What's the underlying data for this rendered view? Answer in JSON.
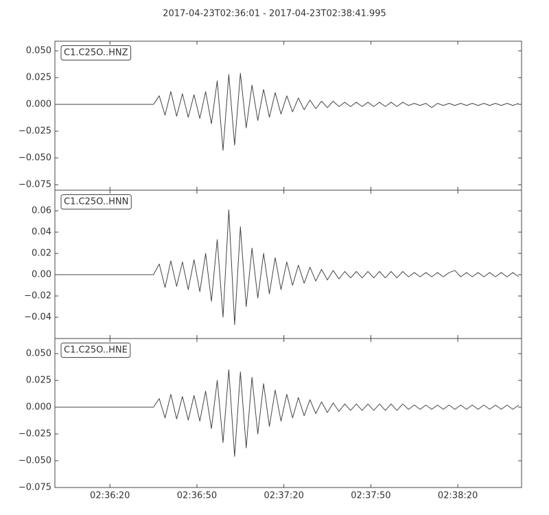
{
  "title": "2017-04-23T02:36:01  -  2017-04-23T02:38:41.995",
  "chart_data": [
    {
      "type": "line",
      "xlim": [
        "02:36:01",
        "02:38:41.995"
      ],
      "ylim": [
        -0.0801,
        0.059
      ],
      "yticks": [
        {
          "value": 0.05,
          "label": "0.050"
        },
        {
          "value": 0.025,
          "label": "0.025"
        },
        {
          "value": 0,
          "label": "0.000"
        },
        {
          "value": -0.025,
          "label": "−0.025"
        },
        {
          "value": -0.05,
          "label": "−0.050"
        },
        {
          "value": -0.075,
          "label": "−0.075"
        }
      ],
      "x": [
        "02:36:01",
        "02:36:03",
        "02:36:05",
        "02:36:07",
        "02:36:09",
        "02:36:11",
        "02:36:13",
        "02:36:15",
        "02:36:17",
        "02:36:19",
        "02:36:21",
        "02:36:23",
        "02:36:25",
        "02:36:27",
        "02:36:29",
        "02:36:31",
        "02:36:33",
        "02:36:35",
        "02:36:37",
        "02:36:39",
        "02:36:41",
        "02:36:43",
        "02:36:45",
        "02:36:47",
        "02:36:49",
        "02:36:51",
        "02:36:53",
        "02:36:55",
        "02:36:57",
        "02:36:59",
        "02:37:01",
        "02:37:03",
        "02:37:05",
        "02:37:07",
        "02:37:09",
        "02:37:11",
        "02:37:13",
        "02:37:15",
        "02:37:17",
        "02:37:19",
        "02:37:21",
        "02:37:23",
        "02:37:25",
        "02:37:27",
        "02:37:29",
        "02:37:31",
        "02:37:33",
        "02:37:35",
        "02:37:37",
        "02:37:39",
        "02:37:41",
        "02:37:43",
        "02:37:45",
        "02:37:47",
        "02:37:49",
        "02:37:51",
        "02:37:53",
        "02:37:55",
        "02:37:57",
        "02:37:59",
        "02:38:01",
        "02:38:03",
        "02:38:05",
        "02:38:07",
        "02:38:09",
        "02:38:11",
        "02:38:13",
        "02:38:15",
        "02:38:17",
        "02:38:19",
        "02:38:21",
        "02:38:23",
        "02:38:25",
        "02:38:27",
        "02:38:29",
        "02:38:31",
        "02:38:33",
        "02:38:35",
        "02:38:37",
        "02:38:39",
        "02:38:41"
      ],
      "series": [
        {
          "name": "C1.C25O..HNZ",
          "color": "#444444",
          "values": [
            0,
            0,
            0,
            0,
            0,
            0,
            0,
            0,
            0,
            0,
            0,
            0,
            0,
            0,
            0,
            0,
            0,
            0,
            0.008,
            -0.01,
            0.012,
            -0.011,
            0.01,
            -0.012,
            0.009,
            -0.013,
            0.012,
            -0.018,
            0.022,
            -0.043,
            0.028,
            -0.038,
            0.029,
            -0.022,
            0.018,
            -0.015,
            0.014,
            -0.012,
            0.011,
            -0.009,
            0.008,
            -0.007,
            0.006,
            -0.005,
            0.004,
            -0.004,
            0.003,
            -0.003,
            0.003,
            -0.002,
            0.002,
            -0.002,
            0.002,
            -0.002,
            0.002,
            -0.002,
            0.002,
            -0.002,
            0.002,
            -0.002,
            0.002,
            -0.001,
            0.001,
            -0.001,
            0.001,
            -0.003,
            0.001,
            -0.001,
            0.001,
            -0.001,
            0.001,
            -0.001,
            0.001,
            -0.001,
            0.001,
            -0.001,
            0.001,
            -0.001,
            0.001,
            -0.001,
            0.001
          ]
        }
      ]
    },
    {
      "type": "line",
      "xlim": [
        "02:36:01",
        "02:38:41.995"
      ],
      "ylim": [
        -0.06,
        0.0794
      ],
      "yticks": [
        {
          "value": 0.06,
          "label": "0.06"
        },
        {
          "value": 0.04,
          "label": "0.04"
        },
        {
          "value": 0.02,
          "label": "0.02"
        },
        {
          "value": 0,
          "label": "0.00"
        },
        {
          "value": -0.02,
          "label": "−0.02"
        },
        {
          "value": -0.04,
          "label": "−0.04"
        }
      ],
      "x": [
        "02:36:01",
        "02:36:03",
        "02:36:05",
        "02:36:07",
        "02:36:09",
        "02:36:11",
        "02:36:13",
        "02:36:15",
        "02:36:17",
        "02:36:19",
        "02:36:21",
        "02:36:23",
        "02:36:25",
        "02:36:27",
        "02:36:29",
        "02:36:31",
        "02:36:33",
        "02:36:35",
        "02:36:37",
        "02:36:39",
        "02:36:41",
        "02:36:43",
        "02:36:45",
        "02:36:47",
        "02:36:49",
        "02:36:51",
        "02:36:53",
        "02:36:55",
        "02:36:57",
        "02:36:59",
        "02:37:01",
        "02:37:03",
        "02:37:05",
        "02:37:07",
        "02:37:09",
        "02:37:11",
        "02:37:13",
        "02:37:15",
        "02:37:17",
        "02:37:19",
        "02:37:21",
        "02:37:23",
        "02:37:25",
        "02:37:27",
        "02:37:29",
        "02:37:31",
        "02:37:33",
        "02:37:35",
        "02:37:37",
        "02:37:39",
        "02:37:41",
        "02:37:43",
        "02:37:45",
        "02:37:47",
        "02:37:49",
        "02:37:51",
        "02:37:53",
        "02:37:55",
        "02:37:57",
        "02:37:59",
        "02:38:01",
        "02:38:03",
        "02:38:05",
        "02:38:07",
        "02:38:09",
        "02:38:11",
        "02:38:13",
        "02:38:15",
        "02:38:17",
        "02:38:19",
        "02:38:21",
        "02:38:23",
        "02:38:25",
        "02:38:27",
        "02:38:29",
        "02:38:31",
        "02:38:33",
        "02:38:35",
        "02:38:37",
        "02:38:39",
        "02:38:41"
      ],
      "series": [
        {
          "name": "C1.C25O..HNN",
          "color": "#444444",
          "values": [
            0,
            0,
            0,
            0,
            0,
            0,
            0,
            0,
            0,
            0,
            0,
            0,
            0,
            0,
            0,
            0,
            0,
            0,
            0.01,
            -0.012,
            0.013,
            -0.011,
            0.012,
            -0.014,
            0.014,
            -0.016,
            0.02,
            -0.025,
            0.033,
            -0.04,
            0.061,
            -0.047,
            0.045,
            -0.03,
            0.025,
            -0.022,
            0.02,
            -0.018,
            0.016,
            -0.014,
            0.012,
            -0.01,
            0.009,
            -0.008,
            0.007,
            -0.006,
            0.005,
            -0.005,
            0.004,
            -0.004,
            0.003,
            -0.003,
            0.003,
            -0.003,
            0.003,
            -0.003,
            0.003,
            -0.003,
            0.003,
            -0.003,
            0.003,
            -0.002,
            0.002,
            -0.002,
            0.002,
            -0.002,
            0.002,
            -0.002,
            0.002,
            0.004,
            -0.002,
            0.002,
            -0.002,
            0.002,
            -0.002,
            0.002,
            -0.002,
            0.002,
            -0.002,
            0.002,
            -0.002
          ]
        }
      ]
    },
    {
      "type": "line",
      "xlim": [
        "02:36:01",
        "02:38:41.995"
      ],
      "ylim": [
        -0.075,
        0.0641
      ],
      "yticks": [
        {
          "value": 0.05,
          "label": "0.050"
        },
        {
          "value": 0.025,
          "label": "0.025"
        },
        {
          "value": 0,
          "label": "0.000"
        },
        {
          "value": -0.025,
          "label": "−0.025"
        },
        {
          "value": -0.05,
          "label": "−0.050"
        },
        {
          "value": -0.075,
          "label": "−0.075"
        }
      ],
      "xticks": [
        "02:36:20",
        "02:36:50",
        "02:37:20",
        "02:37:50",
        "02:38:20"
      ],
      "x": [
        "02:36:01",
        "02:36:03",
        "02:36:05",
        "02:36:07",
        "02:36:09",
        "02:36:11",
        "02:36:13",
        "02:36:15",
        "02:36:17",
        "02:36:19",
        "02:36:21",
        "02:36:23",
        "02:36:25",
        "02:36:27",
        "02:36:29",
        "02:36:31",
        "02:36:33",
        "02:36:35",
        "02:36:37",
        "02:36:39",
        "02:36:41",
        "02:36:43",
        "02:36:45",
        "02:36:47",
        "02:36:49",
        "02:36:51",
        "02:36:53",
        "02:36:55",
        "02:36:57",
        "02:36:59",
        "02:37:01",
        "02:37:03",
        "02:37:05",
        "02:37:07",
        "02:37:09",
        "02:37:11",
        "02:37:13",
        "02:37:15",
        "02:37:17",
        "02:37:19",
        "02:37:21",
        "02:37:23",
        "02:37:25",
        "02:37:27",
        "02:37:29",
        "02:37:31",
        "02:37:33",
        "02:37:35",
        "02:37:37",
        "02:37:39",
        "02:37:41",
        "02:37:43",
        "02:37:45",
        "02:37:47",
        "02:37:49",
        "02:37:51",
        "02:37:53",
        "02:37:55",
        "02:37:57",
        "02:37:59",
        "02:38:01",
        "02:38:03",
        "02:38:05",
        "02:38:07",
        "02:38:09",
        "02:38:11",
        "02:38:13",
        "02:38:15",
        "02:38:17",
        "02:38:19",
        "02:38:21",
        "02:38:23",
        "02:38:25",
        "02:38:27",
        "02:38:29",
        "02:38:31",
        "02:38:33",
        "02:38:35",
        "02:38:37",
        "02:38:39",
        "02:38:41"
      ],
      "series": [
        {
          "name": "C1.C25O..HNE",
          "color": "#444444",
          "values": [
            0,
            0,
            0,
            0,
            0,
            0,
            0,
            0,
            0,
            0,
            0,
            0,
            0,
            0,
            0,
            0,
            0,
            0,
            0.008,
            -0.01,
            0.012,
            -0.011,
            0.01,
            -0.012,
            0.011,
            -0.013,
            0.015,
            -0.02,
            0.025,
            -0.033,
            0.035,
            -0.046,
            0.033,
            -0.038,
            0.028,
            -0.025,
            0.022,
            -0.018,
            0.016,
            -0.013,
            0.012,
            -0.01,
            0.009,
            -0.008,
            0.007,
            -0.006,
            0.005,
            -0.005,
            0.004,
            -0.004,
            0.003,
            -0.003,
            0.003,
            -0.003,
            0.003,
            -0.003,
            0.003,
            -0.003,
            0.003,
            -0.003,
            0.003,
            -0.002,
            0.002,
            -0.002,
            0.002,
            -0.002,
            0.002,
            -0.002,
            0.002,
            -0.002,
            0.002,
            -0.002,
            0.002,
            -0.002,
            0.002,
            -0.002,
            0.002,
            -0.002,
            0.002,
            -0.002,
            0.002
          ]
        }
      ]
    }
  ]
}
